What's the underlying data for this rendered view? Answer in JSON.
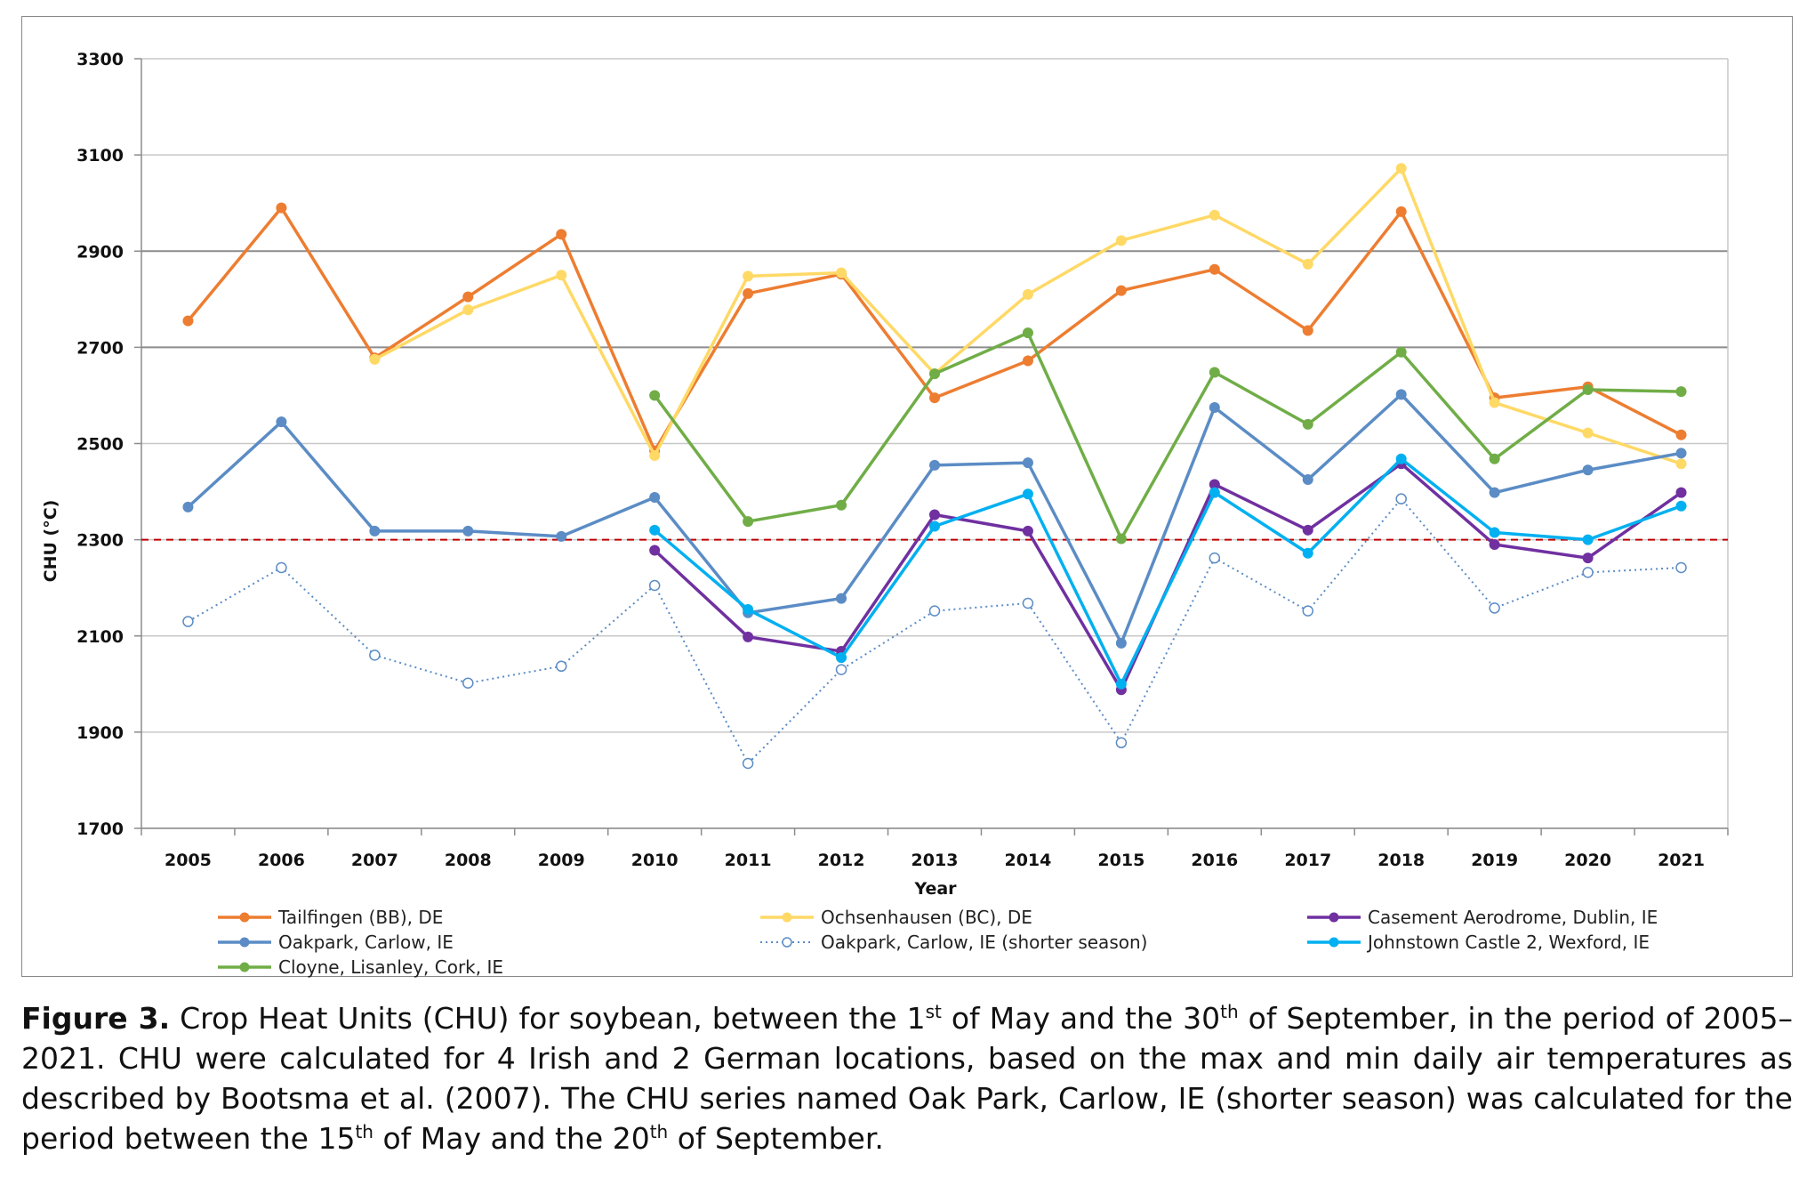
{
  "chart_data": {
    "type": "line",
    "title": "",
    "xlabel": "Year",
    "ylabel": "CHU (°C)",
    "ylim": [
      1700,
      3300
    ],
    "yticks": [
      1700,
      1900,
      2100,
      2300,
      2500,
      2700,
      2900,
      3100,
      3300
    ],
    "grid": true,
    "legend_position": "bottom",
    "x": [
      "2005",
      "2006",
      "2007",
      "2008",
      "2009",
      "2010",
      "2011",
      "2012",
      "2013",
      "2014",
      "2015",
      "2016",
      "2017",
      "2018",
      "2019",
      "2020",
      "2021"
    ],
    "threshold": {
      "value": 2300,
      "color": "#c00000",
      "style": "dashed"
    },
    "series": [
      {
        "name": "Tailfingen (BB), DE",
        "color": "#ed7d31",
        "style": "solid",
        "values": [
          2755,
          2990,
          2678,
          2805,
          2935,
          2485,
          2812,
          2852,
          2595,
          2672,
          2818,
          2862,
          2735,
          2982,
          2595,
          2618,
          2518
        ]
      },
      {
        "name": "Ochsenhausen (BC), DE",
        "color": "#ffd966",
        "style": "solid",
        "values": [
          null,
          null,
          2675,
          2778,
          2850,
          2475,
          2848,
          2855,
          2645,
          2810,
          2922,
          2975,
          2873,
          3072,
          2585,
          2522,
          2458
        ]
      },
      {
        "name": "Casement Aerodrome, Dublin, IE",
        "color": "#7030a0",
        "style": "solid",
        "values": [
          null,
          null,
          null,
          null,
          null,
          2278,
          2098,
          2068,
          2352,
          2318,
          1988,
          2415,
          2320,
          2458,
          2290,
          2262,
          2398
        ]
      },
      {
        "name": "Oakpark, Carlow, IE",
        "color": "#5b8cc5",
        "style": "solid",
        "values": [
          2368,
          2545,
          2318,
          2318,
          2307,
          2388,
          2148,
          2178,
          2455,
          2460,
          2085,
          2575,
          2425,
          2602,
          2398,
          2445,
          2480
        ]
      },
      {
        "name": "Oakpark, Carlow, IE (shorter season)",
        "color": "#5b8cc5",
        "style": "dotted",
        "values": [
          2130,
          2242,
          2060,
          2002,
          2037,
          2205,
          1835,
          2030,
          2152,
          2168,
          1878,
          2262,
          2152,
          2385,
          2158,
          2232,
          2242
        ]
      },
      {
        "name": "Johnstown Castle 2, Wexford, IE",
        "color": "#00b0f0",
        "style": "solid",
        "values": [
          null,
          null,
          null,
          null,
          null,
          2320,
          2155,
          2055,
          2328,
          2395,
          2000,
          2398,
          2272,
          2468,
          2315,
          2300,
          2370
        ]
      },
      {
        "name": "Cloyne, Lisanley, Cork, IE",
        "color": "#70ad47",
        "style": "solid",
        "values": [
          null,
          null,
          null,
          null,
          null,
          2600,
          2338,
          2372,
          2645,
          2730,
          2302,
          2648,
          2540,
          2690,
          2468,
          2612,
          2608
        ]
      }
    ]
  },
  "caption": {
    "label": "Figure 3.",
    "t1": " Crop Heat Units (CHU) for soybean, between the 1",
    "s1": "st",
    "t2": " of May and the 30",
    "s2": "th",
    "t3": " of September, in the period of 2005–2021. CHU were calculated for 4 Irish and 2 German locations, based on the max and min daily air temperatures as described by Bootsma et al. (2007). The CHU series named Oak Park, Carlow, IE (shorter season) was calculated for the period between the 15",
    "s3": "th",
    "t4": " of May and the 20",
    "s4": "th",
    "t5": " of September."
  }
}
